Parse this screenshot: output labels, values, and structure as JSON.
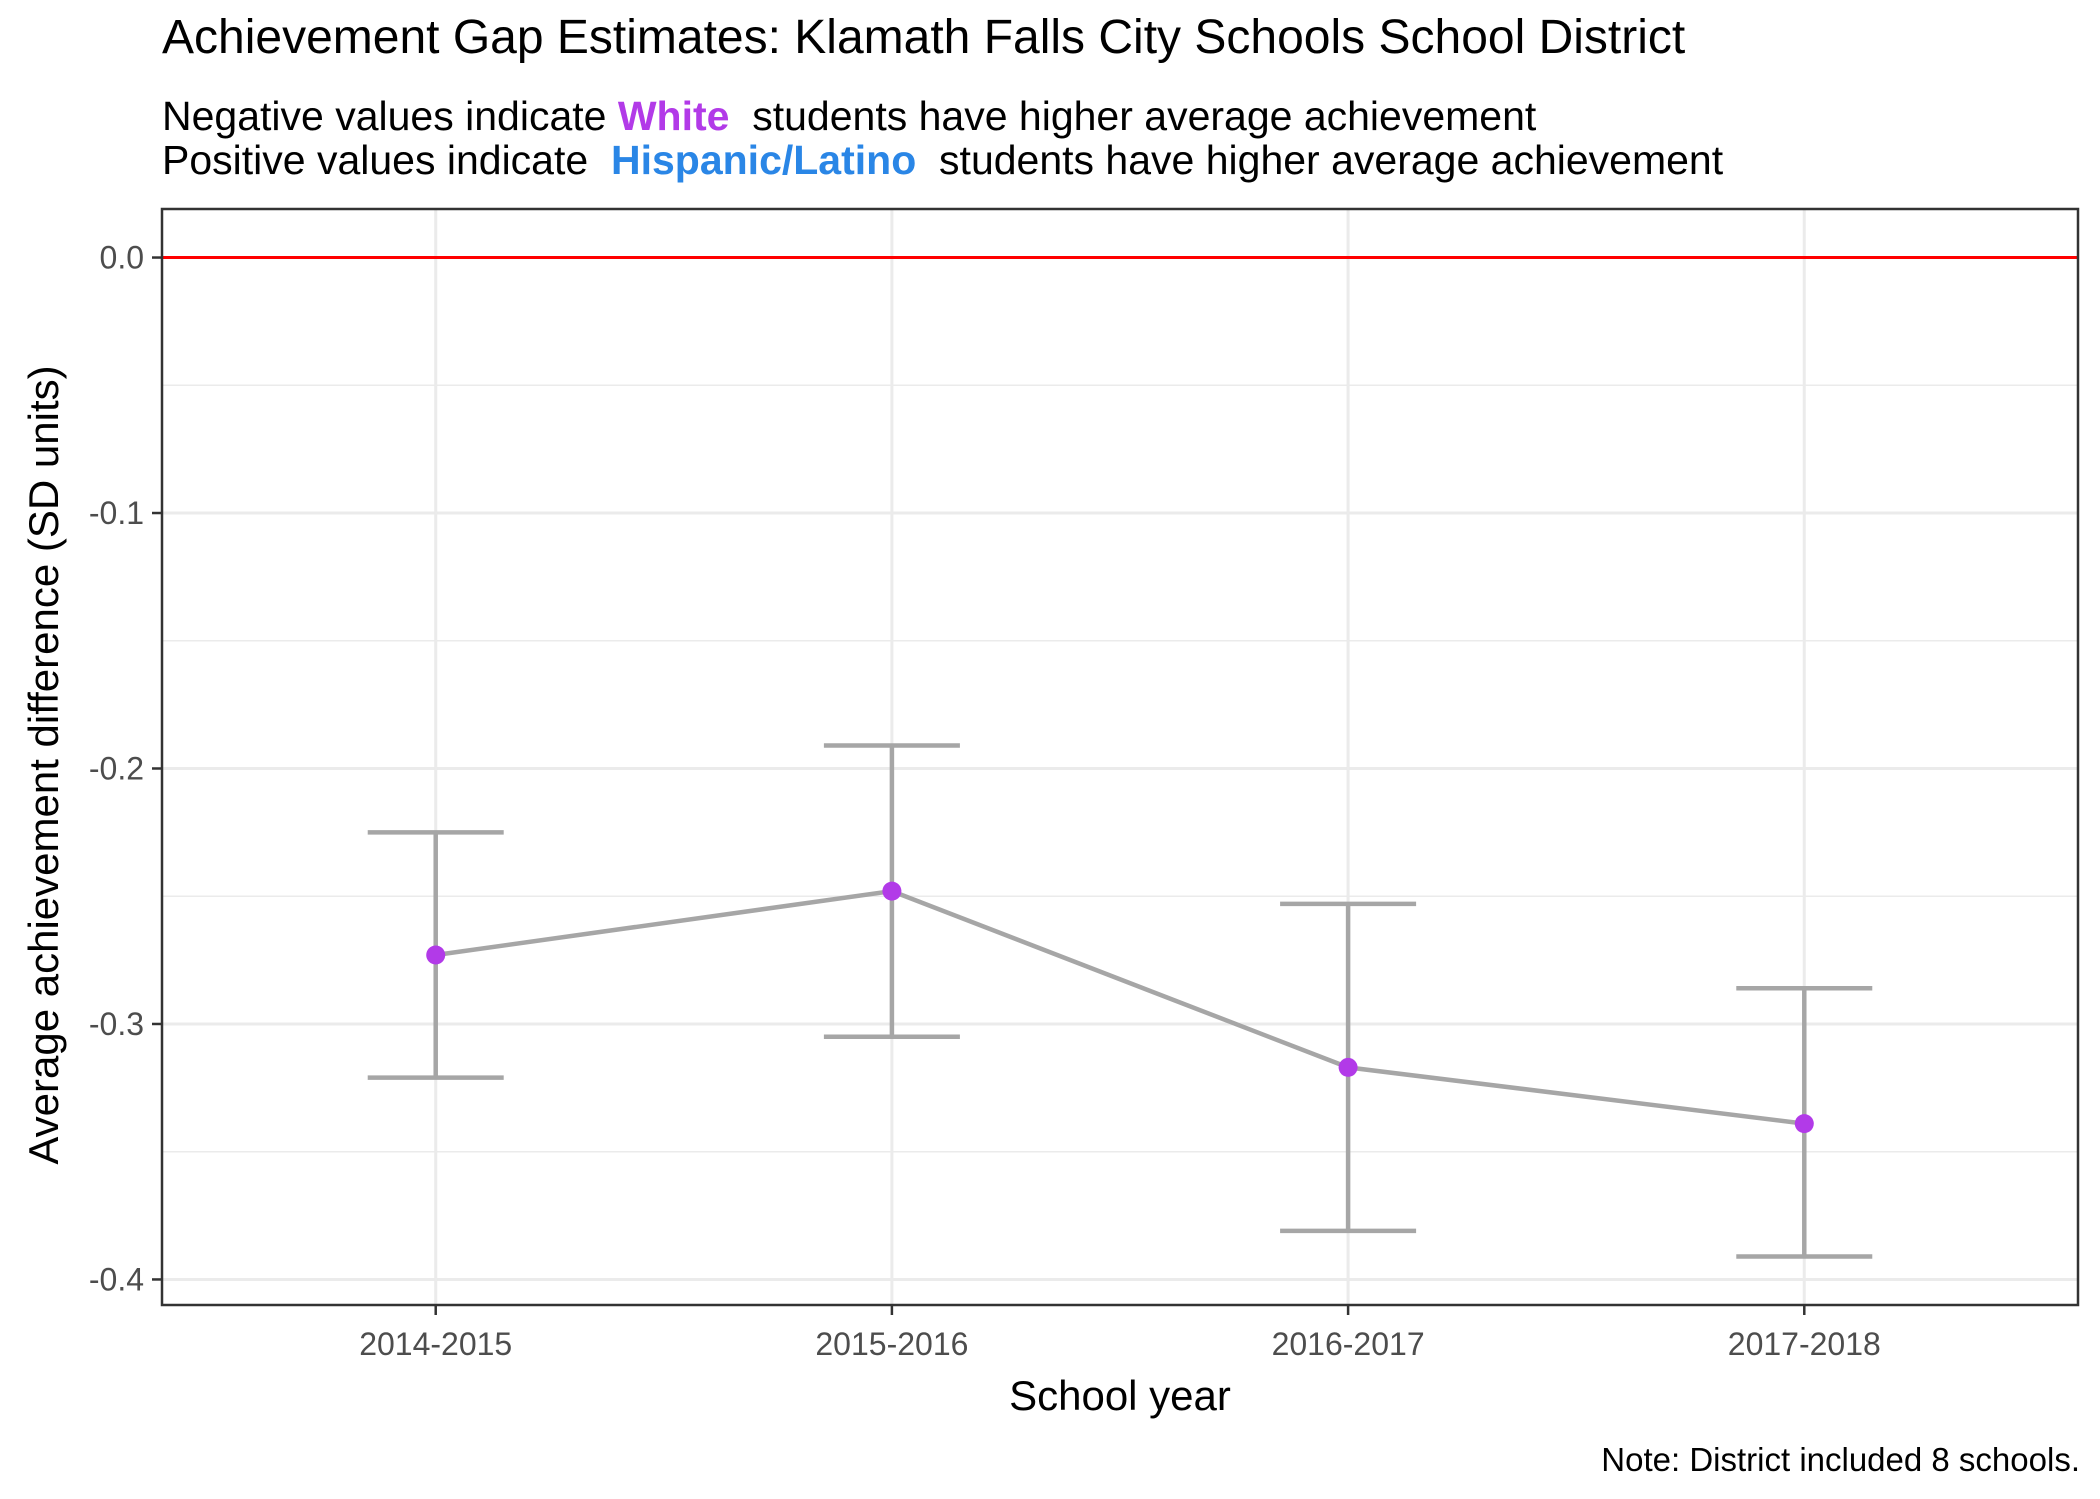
{
  "title": "Achievement Gap Estimates: Klamath Falls City Schools School District",
  "subtitle": {
    "line1_pre": "Negative values indicate",
    "line1_group": "White",
    "line1_post": "students have higher average achievement",
    "line2_pre": "Positive values indicate",
    "line2_group": "Hispanic/Latino",
    "line2_post": "students have higher average achievement"
  },
  "note": "Note: District included 8 schools.",
  "colors": {
    "white_group": "#b23ae8",
    "hispanic_group": "#2a86e6",
    "reference_line": "#ff0000",
    "line": "#a6a6a6",
    "errorbar": "#a6a6a6",
    "point": "#b23ae8",
    "grid": "#ebebeb"
  },
  "chart_data": {
    "type": "line",
    "title": "Achievement Gap Estimates: Klamath Falls City Schools School District",
    "xlabel": "School year",
    "ylabel": "Average achievement difference (SD units)",
    "categories": [
      "2014-2015",
      "2015-2016",
      "2016-2017",
      "2017-2018"
    ],
    "series": [
      {
        "values": [
          -0.273,
          -0.248,
          -0.317,
          -0.339
        ],
        "lower": [
          -0.321,
          -0.305,
          -0.381,
          -0.391
        ],
        "upper": [
          -0.225,
          -0.191,
          -0.253,
          -0.286
        ]
      }
    ],
    "ylim": [
      -0.41,
      0.019
    ],
    "yticks": [
      0.0,
      -0.1,
      -0.2,
      -0.3,
      -0.4
    ],
    "ytick_labels": [
      "0.0",
      "-0.1",
      "-0.2",
      "-0.3",
      "-0.4"
    ],
    "reference_line": 0.0,
    "grid": true,
    "legend": "none"
  }
}
